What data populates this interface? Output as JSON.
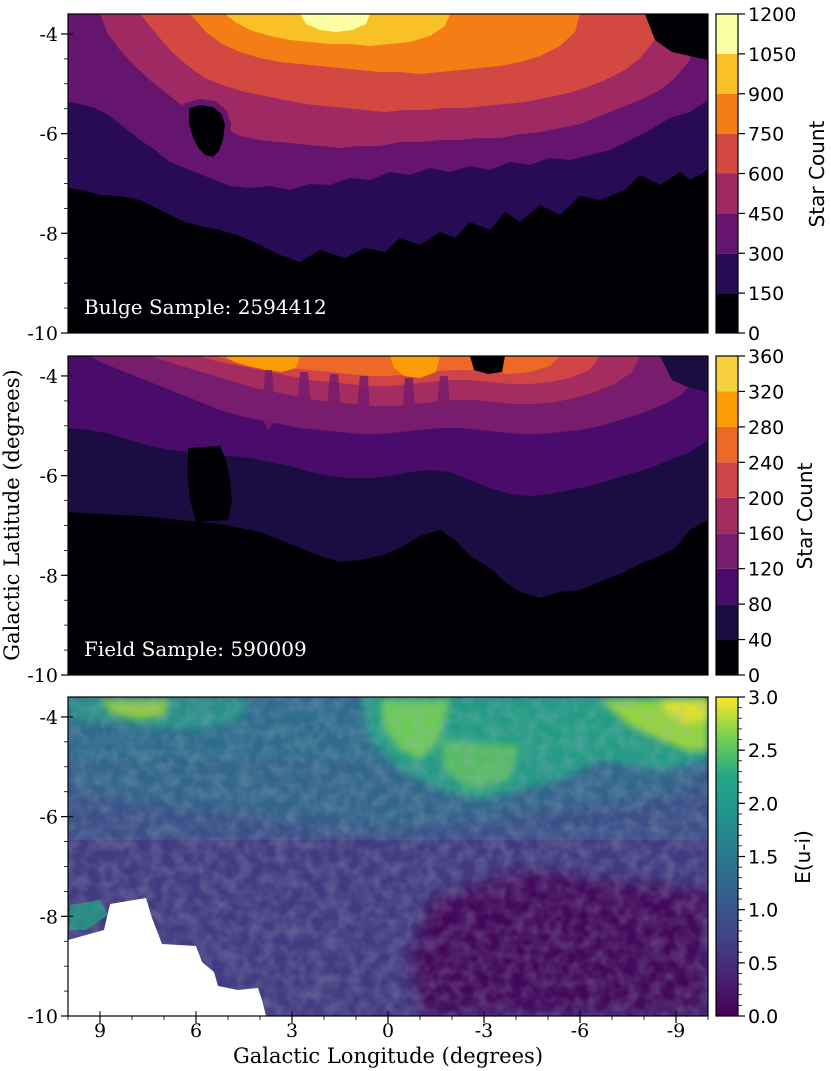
{
  "figure": {
    "shared_ylabel": "Galactic Latitude (degrees)",
    "shared_xlabel": "Galactic Longitude (degrees)"
  },
  "chart_data": [
    {
      "type": "heatmap",
      "subtype": "filled-contour",
      "annotation": "Bulge Sample: 2594412",
      "xlim": [
        10,
        -10
      ],
      "ylim": [
        -10,
        -3.6
      ],
      "yticks": [
        "-4",
        "-6",
        "-8",
        "-10"
      ],
      "ytick_values": [
        -4,
        -6,
        -8,
        -10
      ],
      "xticks_shown": false,
      "colormap": "inferno",
      "colorbar": {
        "label": "Star Count",
        "ticks": [
          "0",
          "150",
          "300",
          "450",
          "600",
          "750",
          "900",
          "1050",
          "1200"
        ],
        "levels": [
          0,
          150,
          300,
          450,
          600,
          750,
          900,
          1050,
          1200
        ],
        "colors": [
          "#000004",
          "#280b54",
          "#65156e",
          "#9f2a63",
          "#d44842",
          "#f57d15",
          "#fac127",
          "#fcffa4"
        ]
      },
      "density_features": {
        "peak_region": "b near -4, l between 6 and -3 (up to ~1050-1200)",
        "low_density_hole": "around l=5.5, b=-5.7",
        "floor": "below b=-8.5 mostly 0-150"
      }
    },
    {
      "type": "heatmap",
      "subtype": "filled-contour",
      "annotation": "Field Sample: 590009",
      "xlim": [
        10,
        -10
      ],
      "ylim": [
        -10,
        -3.6
      ],
      "yticks": [
        "-4",
        "-6",
        "-8",
        "-10"
      ],
      "ytick_values": [
        -4,
        -6,
        -8,
        -10
      ],
      "xticks_shown": false,
      "colormap": "inferno",
      "colorbar": {
        "label": "Star Count",
        "ticks": [
          "0",
          "40",
          "80",
          "120",
          "160",
          "200",
          "240",
          "280",
          "320",
          "360"
        ],
        "levels": [
          0,
          40,
          80,
          120,
          160,
          200,
          240,
          280,
          320,
          360
        ],
        "colors": [
          "#000004",
          "#1b0c41",
          "#4a0c6b",
          "#781c6d",
          "#a52c60",
          "#cf4446",
          "#ed6925",
          "#fb9b06",
          "#f7d13d"
        ]
      },
      "density_features": {
        "peak_region": "b near -4, l between 6 and -2 (up to ~280-320)",
        "floor": "below b=-6.5 mostly 0-40"
      }
    },
    {
      "type": "heatmap",
      "subtype": "pixel-map",
      "xlim": [
        10,
        -10
      ],
      "ylim": [
        -10,
        -3.6
      ],
      "yticks": [
        "-4",
        "-6",
        "-8",
        "-10"
      ],
      "ytick_values": [
        -4,
        -6,
        -8,
        -10
      ],
      "xticks": [
        "9",
        "6",
        "3",
        "0",
        "-3",
        "-6",
        "-9"
      ],
      "xtick_values": [
        9,
        6,
        3,
        0,
        -3,
        -6,
        -9
      ],
      "colormap": "viridis",
      "colorbar": {
        "label": "E(u-i)",
        "ticks": [
          "0.0",
          "0.5",
          "1.0",
          "1.5",
          "2.0",
          "2.5",
          "3.0"
        ],
        "range": [
          0,
          3
        ]
      },
      "features": {
        "high_reddening": "b near -3.6 to -4.5, especially l between 0 and -3 and l < -8 (2.5-3.0)",
        "low_reddening": "b below -8, l between -3 and -10 (0.0-0.5)",
        "no_data_region": "lower-left corner, l from 10 to 4, b below -7.6"
      }
    }
  ]
}
